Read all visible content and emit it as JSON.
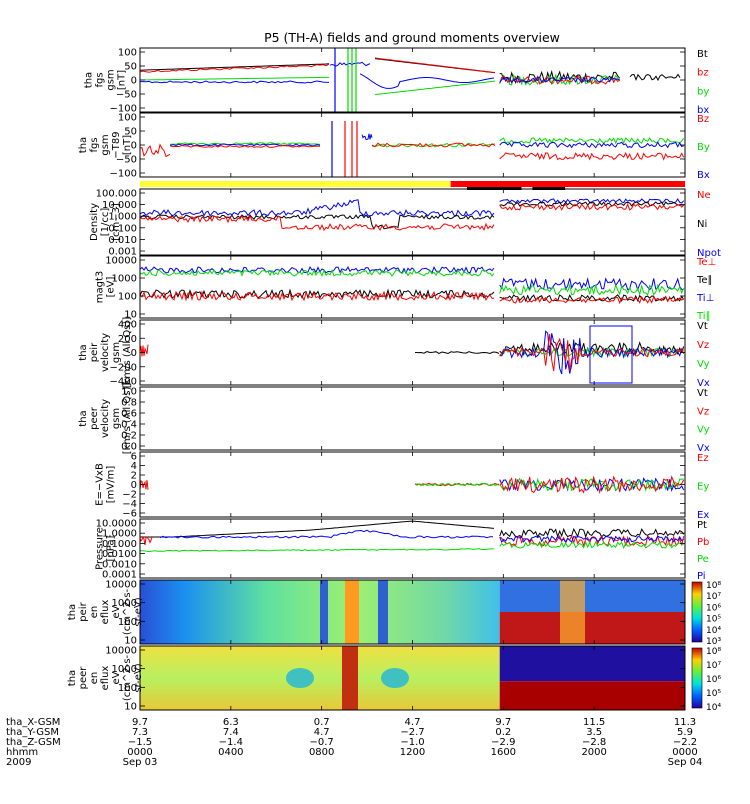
{
  "title": "P5 (TH-A) fields and ground moments overview",
  "colors": {
    "black": "#000000",
    "red": "#ff0000",
    "green": "#00dd00",
    "blue": "#0000ff",
    "yellow": "#ffff33"
  },
  "mode_bar": {
    "segments": [
      {
        "from": 0.0,
        "to": 0.57,
        "color": "#ffff33"
      },
      {
        "from": 0.57,
        "to": 1.0,
        "color": "#ff0000"
      }
    ],
    "marks": [
      {
        "from": 0.6,
        "to": 0.7
      },
      {
        "from": 0.72,
        "to": 0.78
      }
    ]
  },
  "chart_data": [
    {
      "id": "fgs",
      "type": "line",
      "ylabel": [
        "tha",
        "fgs",
        "gsm",
        "[nT]"
      ],
      "ticks": [
        "100",
        "50",
        "0",
        "−50",
        "−100"
      ],
      "legend": [
        {
          "name": "Bt",
          "color": "#000000"
        },
        {
          "name": "bz",
          "color": "#ff0000"
        },
        {
          "name": "by",
          "color": "#00dd00"
        },
        {
          "name": "bx",
          "color": "#0000ff"
        }
      ]
    },
    {
      "id": "fgs-t89",
      "type": "line",
      "ylabel": [
        "tha",
        "fgs",
        "gsm",
        "−T89",
        "[nT]"
      ],
      "ticks": [
        "100",
        "50",
        "0",
        "−50",
        "−100"
      ],
      "legend": [
        {
          "name": "Bz",
          "color": "#ff0000"
        },
        {
          "name": "By",
          "color": "#00dd00"
        },
        {
          "name": "Bx",
          "color": "#0000ff"
        }
      ]
    },
    {
      "id": "density",
      "type": "line",
      "ylabel": [
        "Density",
        "[1/cc]",
        "[cm−3]"
      ],
      "ticks": [
        "100.000",
        "10.000",
        "1.000",
        "0.100",
        "0.010",
        "0.001"
      ],
      "legend": [
        {
          "name": "Ne",
          "color": "#ff0000"
        },
        {
          "name": "Ni",
          "color": "#000000"
        },
        {
          "name": "Npot",
          "color": "#0000ff"
        }
      ]
    },
    {
      "id": "temperature",
      "type": "line",
      "ylabel": [
        "magt3",
        "[eV]"
      ],
      "ticks": [
        "10000",
        "1000",
        "100",
        "10"
      ],
      "legend": [
        {
          "name": "Te⊥",
          "color": "#ff0000"
        },
        {
          "name": "Te∥",
          "color": "#000000"
        },
        {
          "name": "Ti⊥",
          "color": "#0000ff"
        },
        {
          "name": "Ti∥",
          "color": "#00dd00"
        }
      ]
    },
    {
      "id": "peir-velocity",
      "type": "line",
      "ylabel": [
        "tha",
        "peir",
        "velocity",
        "gsm",
        "[km/s (All Qs)]"
      ],
      "ticks": [
        "400",
        "200",
        "0",
        "−200",
        "−400"
      ],
      "legend": [
        {
          "name": "Vt",
          "color": "#000000"
        },
        {
          "name": "Vz",
          "color": "#ff0000"
        },
        {
          "name": "Vy",
          "color": "#00dd00"
        },
        {
          "name": "Vx",
          "color": "#0000ff"
        }
      ]
    },
    {
      "id": "peer-velocity",
      "type": "line",
      "ylabel": [
        "tha",
        "peer",
        "velocity",
        "gsm",
        "[km/s (All Qs)]"
      ],
      "ticks": [
        "1.0",
        "0.8",
        "0.6",
        "0.4",
        "0.2",
        "0.0"
      ],
      "legend": [
        {
          "name": "Vt",
          "color": "#000000"
        },
        {
          "name": "Vz",
          "color": "#ff0000"
        },
        {
          "name": "Vy",
          "color": "#00dd00"
        },
        {
          "name": "Vx",
          "color": "#0000ff"
        }
      ]
    },
    {
      "id": "efield",
      "type": "line",
      "ylabel": [
        "E=−VxB",
        "[mV/m]"
      ],
      "ticks": [
        "6",
        "4",
        "2",
        "0",
        "−2",
        "−4",
        "−6"
      ],
      "legend": [
        {
          "name": "Ez",
          "color": "#ff0000"
        },
        {
          "name": "Ey",
          "color": "#00dd00"
        },
        {
          "name": "Ex",
          "color": "#0000ff"
        }
      ]
    },
    {
      "id": "pressure",
      "type": "line",
      "ylabel": [
        "Pressure",
        "[nPa]"
      ],
      "ticks": [
        "10.0000",
        "1.0000",
        "0.1000",
        "0.0100",
        "0.0010",
        "0.0001"
      ],
      "legend": [
        {
          "name": "Pt",
          "color": "#000000"
        },
        {
          "name": "Pb",
          "color": "#ff0000"
        },
        {
          "name": "Pe",
          "color": "#00dd00"
        },
        {
          "name": "Pi",
          "color": "#0000ff"
        }
      ]
    },
    {
      "id": "peir-eflux",
      "type": "heatmap",
      "ylabel": [
        "tha",
        "peir",
        "en",
        "eflux",
        "eV",
        "(cm^2-s-",
        "sr-eV)"
      ],
      "ticks": [
        "10000",
        "1000",
        "100",
        "10"
      ],
      "colorbar": [
        "10⁸",
        "10⁷",
        "10⁶",
        "10⁵",
        "10⁴",
        "10³"
      ]
    },
    {
      "id": "peer-eflux",
      "type": "heatmap",
      "ylabel": [
        "tha",
        "peer",
        "en",
        "eflux",
        "eV",
        "(cm^2-s-",
        "sr-eV)"
      ],
      "ticks": [
        "10000",
        "1000",
        "100",
        "10"
      ],
      "colorbar": [
        "10⁸",
        "10⁷",
        "10⁶",
        "10⁵",
        "10⁴"
      ]
    }
  ],
  "x_axis": {
    "row_labels": [
      "tha_X-GSM",
      "tha_Y-GSM",
      "tha_Z-GSM",
      "hhmm",
      "2009"
    ],
    "ticks": [
      {
        "x": "9.7",
        "y": "7.3",
        "z": "−1.5",
        "hhmm": "0000",
        "date": "Sep 03"
      },
      {
        "x": "6.3",
        "y": "7.4",
        "z": "−1.4",
        "hhmm": "0400",
        "date": ""
      },
      {
        "x": "0.7",
        "y": "4.7",
        "z": "−0.7",
        "hhmm": "0800",
        "date": ""
      },
      {
        "x": "4.7",
        "y": "−2.7",
        "z": "−1.0",
        "hhmm": "1200",
        "date": ""
      },
      {
        "x": "9.7",
        "y": "0.2",
        "z": "−2.9",
        "hhmm": "1600",
        "date": ""
      },
      {
        "x": "11.5",
        "y": "3.5",
        "z": "−2.8",
        "hhmm": "2000",
        "date": ""
      },
      {
        "x": "11.3",
        "y": "5.9",
        "z": "−2.2",
        "hhmm": "0000",
        "date": "Sep 04"
      }
    ]
  }
}
